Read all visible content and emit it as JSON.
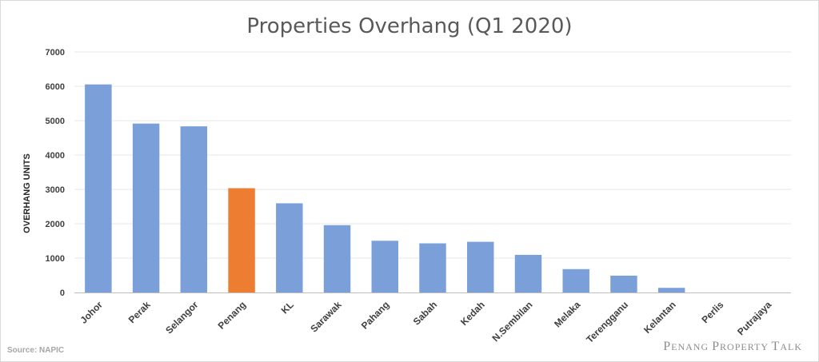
{
  "chart_data": {
    "type": "bar",
    "title": "Properties Overhang (Q1 2020)",
    "ylabel": "OVERHANG UNITS",
    "xlabel": "",
    "ylim": [
      0,
      7000
    ],
    "yticks": [
      0,
      1000,
      2000,
      3000,
      4000,
      5000,
      6000,
      7000
    ],
    "grid": true,
    "categories": [
      "Johor",
      "Perak",
      "Selangor",
      "Penang",
      "KL",
      "Sarawak",
      "Pahang",
      "Sabah",
      "Kedah",
      "N.Sembilan",
      "Melaka",
      "Terengganu",
      "Kelantan",
      "Perlis",
      "Putrajaya"
    ],
    "values": [
      6055,
      4915,
      4835,
      3035,
      2595,
      1960,
      1505,
      1430,
      1475,
      1095,
      680,
      490,
      135,
      0,
      0
    ],
    "colors": {
      "default": "#7b9fd9",
      "highlight": "#ed7d31",
      "highlight_category": "Penang",
      "grid": "#e7e7e7",
      "axis": "#bfbfbf"
    }
  },
  "footer": {
    "source": "Source: NAPIC",
    "watermark": "Penang Property Talk"
  }
}
